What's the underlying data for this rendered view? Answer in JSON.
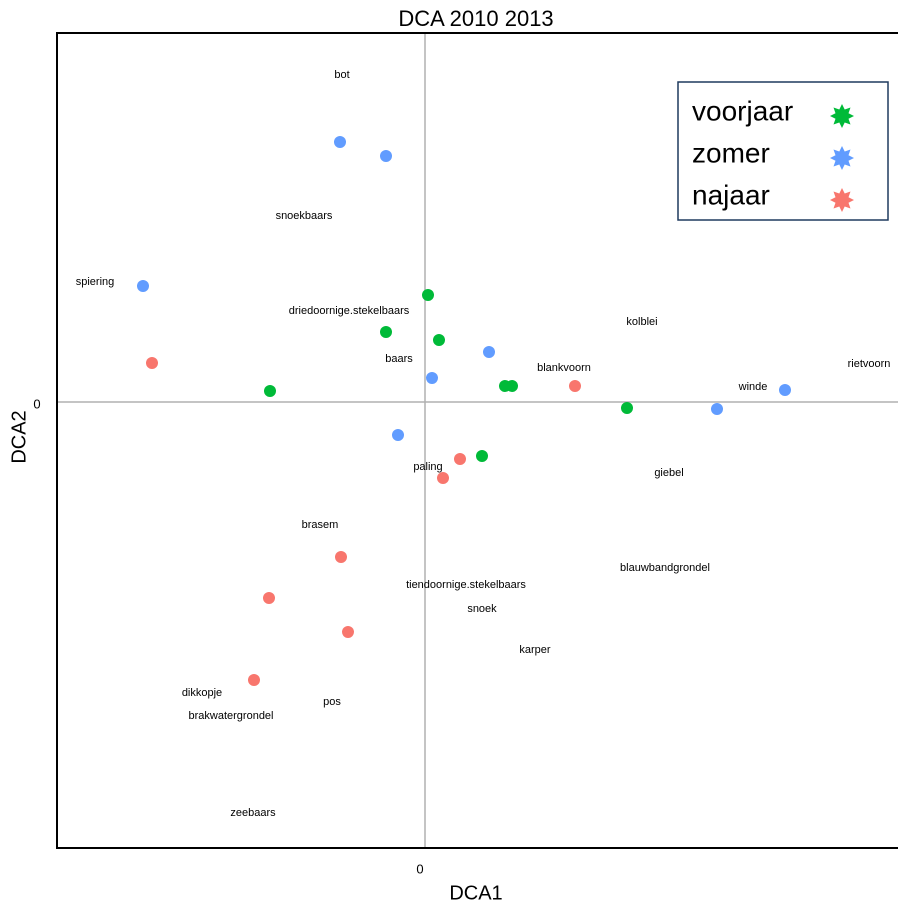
{
  "chart_data": {
    "type": "scatter",
    "title": "DCA 2010 2013",
    "xlabel": "DCA1",
    "ylabel": "DCA2",
    "xlim": [
      -3.68,
      4.73
    ],
    "ylim": [
      -4.46,
      3.69
    ],
    "xticks": [
      0
    ],
    "yticks": [
      0
    ],
    "legend": "upper right",
    "series": [
      {
        "name": "voorjaar",
        "color": "#00ba38",
        "x": [
          0.03,
          -0.39,
          0.14,
          -1.55,
          0.8,
          0.87,
          2.02,
          0.57
        ],
        "values": [
          1.07,
          0.7,
          0.62,
          0.11,
          0.16,
          0.16,
          -0.06,
          -0.54
        ]
      },
      {
        "name": "zomer",
        "color": "#619cff",
        "x": [
          -0.85,
          -0.39,
          -2.82,
          0.64,
          0.07,
          -0.27,
          2.92,
          3.6
        ],
        "values": [
          2.6,
          2.46,
          1.16,
          0.5,
          0.24,
          -0.33,
          -0.07,
          0.12
        ]
      },
      {
        "name": "najaar",
        "color": "#f8766d",
        "x": [
          -2.73,
          1.5,
          0.35,
          0.18,
          -0.84,
          -1.56,
          -0.77,
          -1.71
        ],
        "values": [
          0.39,
          0.16,
          -0.57,
          -0.76,
          -1.55,
          -1.96,
          -2.3,
          -2.78
        ]
      }
    ],
    "annotations": [
      {
        "text": "bot",
        "x": -0.83,
        "y": 3.27
      },
      {
        "text": "snoekbaars",
        "x": -1.21,
        "y": 1.86
      },
      {
        "text": "spiering",
        "x": -3.3,
        "y": 1.2
      },
      {
        "text": "driedoornige.stekelbaars",
        "x": -0.76,
        "y": 0.91
      },
      {
        "text": "kolblei",
        "x": 2.17,
        "y": 0.8
      },
      {
        "text": "baars",
        "x": -0.26,
        "y": 0.43
      },
      {
        "text": "blankvoorn",
        "x": 1.39,
        "y": 0.34
      },
      {
        "text": "rietvoorn",
        "x": 4.44,
        "y": 0.38
      },
      {
        "text": "winde",
        "x": 3.28,
        "y": 0.15
      },
      {
        "text": "paling",
        "x": 0.03,
        "y": -0.65
      },
      {
        "text": "giebel",
        "x": 2.44,
        "y": -0.71
      },
      {
        "text": "brasem",
        "x": -1.05,
        "y": -1.23
      },
      {
        "text": "blauwbandgrondel",
        "x": 2.4,
        "y": -1.66
      },
      {
        "text": "tiendoornige.stekelbaars",
        "x": 0.41,
        "y": -1.83
      },
      {
        "text": "snoek",
        "x": 0.57,
        "y": -2.07
      },
      {
        "text": "karper",
        "x": 1.1,
        "y": -2.48
      },
      {
        "text": "dikkopje",
        "x": -2.23,
        "y": -2.91
      },
      {
        "text": "pos",
        "x": -0.93,
        "y": -3.0
      },
      {
        "text": "brakwatergrondel",
        "x": -1.94,
        "y": -3.14
      },
      {
        "text": "zeebaars",
        "x": -1.72,
        "y": -4.11
      }
    ]
  }
}
